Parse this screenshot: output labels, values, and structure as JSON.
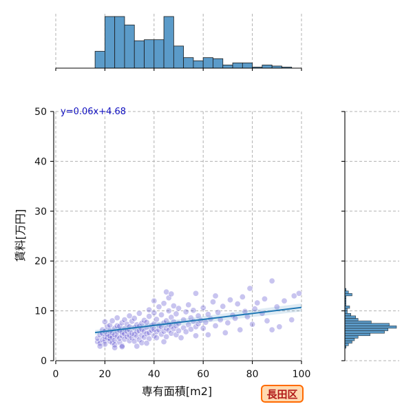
{
  "chart_data": {
    "type": "scatter",
    "xlabel": "専有面積[m2]",
    "ylabel": "賃料[万円]",
    "xlim": [
      0,
      100
    ],
    "ylim": [
      0,
      50
    ],
    "x_ticks": [
      0,
      20,
      40,
      60,
      80,
      100
    ],
    "y_ticks": [
      0,
      10,
      20,
      30,
      40,
      50
    ],
    "grid": true,
    "regression": {
      "label": "y=0.06x+4.68",
      "slope": 0.06,
      "intercept": 4.68,
      "x_range": [
        16,
        100
      ]
    },
    "badge": "長田区",
    "colors": {
      "points": "#3a2bc4",
      "regression": "#1f77b4",
      "histogram": "#5b9bc9",
      "badge_border": "#ff6a00",
      "badge_fill": "#ffd9b0",
      "badge_text": "#b01818"
    },
    "x_histogram": {
      "bin_edges": [
        0,
        16,
        20,
        24,
        28,
        32,
        36,
        40,
        44,
        48,
        52,
        56,
        60,
        64,
        68,
        72,
        76,
        80,
        84,
        88,
        92,
        96,
        100
      ],
      "counts": [
        0,
        16,
        49,
        49,
        41,
        26,
        27,
        27,
        49,
        21,
        10,
        7,
        10,
        9,
        3,
        5,
        5,
        1,
        3,
        2,
        1,
        0
      ]
    },
    "y_histogram": {
      "bin_edges": [
        2.5,
        3,
        3.5,
        4,
        4.5,
        5,
        5.5,
        6,
        6.5,
        7,
        7.5,
        8,
        8.5,
        9,
        9.5,
        10,
        10.5,
        11,
        11.5,
        12,
        12.5,
        13,
        13.5,
        14,
        14.5
      ],
      "counts": [
        1,
        3,
        6,
        8,
        11,
        21,
        33,
        36,
        43,
        37,
        22,
        11,
        9,
        5,
        2,
        2,
        4,
        1,
        1,
        1,
        1,
        6,
        3,
        1
      ]
    },
    "points": [
      [
        17,
        3.8
      ],
      [
        17,
        4.5
      ],
      [
        18,
        5.2
      ],
      [
        18,
        3.5
      ],
      [
        19,
        4.2
      ],
      [
        19,
        5.5
      ],
      [
        19,
        6.2
      ],
      [
        20,
        4.0
      ],
      [
        20,
        4.8
      ],
      [
        20,
        5.9
      ],
      [
        20,
        7.8
      ],
      [
        20,
        3.3
      ],
      [
        21,
        4.6
      ],
      [
        21,
        5.3
      ],
      [
        21,
        6.8
      ],
      [
        22,
        3.9
      ],
      [
        22,
        4.4
      ],
      [
        22,
        5.0
      ],
      [
        22,
        6.0
      ],
      [
        22,
        7.1
      ],
      [
        23,
        3.6
      ],
      [
        23,
        4.7
      ],
      [
        23,
        5.6
      ],
      [
        23,
        8.0
      ],
      [
        24,
        4.1
      ],
      [
        24,
        5.2
      ],
      [
        24,
        6.5
      ],
      [
        24,
        3.2
      ],
      [
        25,
        4.9
      ],
      [
        25,
        5.8
      ],
      [
        25,
        7.0
      ],
      [
        25,
        8.6
      ],
      [
        26,
        3.7
      ],
      [
        26,
        4.5
      ],
      [
        26,
        6.1
      ],
      [
        26,
        6.9
      ],
      [
        27,
        5.0
      ],
      [
        27,
        5.7
      ],
      [
        27,
        7.6
      ],
      [
        27,
        3.0
      ],
      [
        28,
        4.3
      ],
      [
        28,
        5.4
      ],
      [
        28,
        6.4
      ],
      [
        28,
        8.2
      ],
      [
        29,
        4.8
      ],
      [
        29,
        5.9
      ],
      [
        29,
        7.3
      ],
      [
        30,
        4.0
      ],
      [
        30,
        5.1
      ],
      [
        30,
        6.2
      ],
      [
        30,
        6.8
      ],
      [
        30,
        9.0
      ],
      [
        31,
        4.6
      ],
      [
        31,
        5.5
      ],
      [
        31,
        7.9
      ],
      [
        32,
        3.9
      ],
      [
        32,
        5.3
      ],
      [
        32,
        6.6
      ],
      [
        32,
        8.5
      ],
      [
        33,
        4.9
      ],
      [
        33,
        5.8
      ],
      [
        33,
        7.2
      ],
      [
        34,
        4.2
      ],
      [
        34,
        6.0
      ],
      [
        34,
        6.9
      ],
      [
        34,
        9.5
      ],
      [
        35,
        5.1
      ],
      [
        35,
        6.3
      ],
      [
        35,
        7.5
      ],
      [
        35,
        3.6
      ],
      [
        36,
        4.7
      ],
      [
        36,
        5.9
      ],
      [
        36,
        8.1
      ],
      [
        37,
        5.4
      ],
      [
        37,
        6.7
      ],
      [
        37,
        7.7
      ],
      [
        38,
        4.4
      ],
      [
        38,
        5.6
      ],
      [
        38,
        8.9
      ],
      [
        38,
        10.2
      ],
      [
        39,
        6.1
      ],
      [
        39,
        7.0
      ],
      [
        40,
        5.0
      ],
      [
        40,
        6.3
      ],
      [
        40,
        7.4
      ],
      [
        40,
        9.6
      ],
      [
        40,
        12.0
      ],
      [
        41,
        4.6
      ],
      [
        41,
        5.8
      ],
      [
        41,
        8.3
      ],
      [
        42,
        6.2
      ],
      [
        42,
        7.1
      ],
      [
        42,
        10.8
      ],
      [
        43,
        5.3
      ],
      [
        43,
        6.8
      ],
      [
        43,
        9.2
      ],
      [
        44,
        5.9
      ],
      [
        44,
        7.6
      ],
      [
        44,
        11.5
      ],
      [
        45,
        4.8
      ],
      [
        45,
        6.5
      ],
      [
        45,
        8.0
      ],
      [
        45,
        13.8
      ],
      [
        46,
        6.1
      ],
      [
        46,
        7.3
      ],
      [
        46,
        10.0
      ],
      [
        46,
        12.6
      ],
      [
        47,
        5.5
      ],
      [
        47,
        6.9
      ],
      [
        47,
        8.7
      ],
      [
        47,
        13.4
      ],
      [
        48,
        6.4
      ],
      [
        48,
        7.8
      ],
      [
        48,
        11.0
      ],
      [
        49,
        5.2
      ],
      [
        49,
        7.0
      ],
      [
        49,
        9.4
      ],
      [
        50,
        6.0
      ],
      [
        50,
        7.5
      ],
      [
        50,
        10.5
      ],
      [
        52,
        6.6
      ],
      [
        52,
        8.2
      ],
      [
        53,
        5.8
      ],
      [
        53,
        9.8
      ],
      [
        54,
        7.2
      ],
      [
        54,
        11.2
      ],
      [
        55,
        6.3
      ],
      [
        55,
        8.6
      ],
      [
        56,
        7.9
      ],
      [
        56,
        10.1
      ],
      [
        57,
        6.8
      ],
      [
        57,
        13.5
      ],
      [
        58,
        7.4
      ],
      [
        58,
        9.0
      ],
      [
        59,
        8.1
      ],
      [
        60,
        6.5
      ],
      [
        60,
        10.6
      ],
      [
        61,
        7.7
      ],
      [
        62,
        9.3
      ],
      [
        63,
        8.4
      ],
      [
        64,
        11.8
      ],
      [
        65,
        7.0
      ],
      [
        65,
        13.0
      ],
      [
        66,
        9.7
      ],
      [
        67,
        8.2
      ],
      [
        68,
        10.9
      ],
      [
        70,
        7.6
      ],
      [
        71,
        12.2
      ],
      [
        72,
        9.1
      ],
      [
        73,
        8.5
      ],
      [
        74,
        11.4
      ],
      [
        75,
        6.2
      ],
      [
        76,
        12.8
      ],
      [
        77,
        9.9
      ],
      [
        78,
        8.8
      ],
      [
        79,
        14.5
      ],
      [
        80,
        7.3
      ],
      [
        81,
        10.4
      ],
      [
        82,
        11.6
      ],
      [
        84,
        9.5
      ],
      [
        85,
        12.4
      ],
      [
        86,
        8.0
      ],
      [
        88,
        16.0
      ],
      [
        90,
        10.8
      ],
      [
        91,
        6.8
      ],
      [
        93,
        12.0
      ],
      [
        96,
        8.2
      ],
      [
        97,
        13.0
      ],
      [
        99,
        13.5
      ],
      [
        88,
        6.2
      ],
      [
        69,
        5.6
      ],
      [
        62,
        5.2
      ],
      [
        57,
        5.0
      ],
      [
        51,
        4.6
      ],
      [
        44,
        3.8
      ],
      [
        37,
        3.5
      ],
      [
        33,
        2.9
      ],
      [
        27,
        2.8
      ],
      [
        24,
        2.6
      ],
      [
        18,
        2.9
      ]
    ]
  }
}
